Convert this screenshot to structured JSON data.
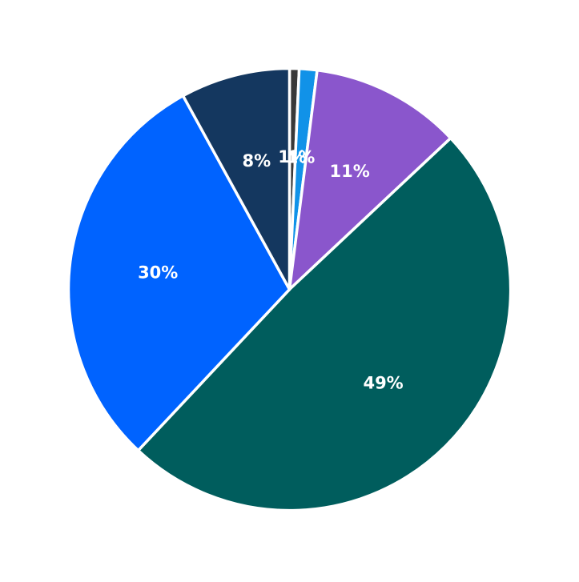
{
  "chart_data": {
    "type": "pie",
    "start_angle": "top",
    "direction": "clockwise",
    "slices": [
      {
        "value": 0.7,
        "label": "1%",
        "color": "#393939"
      },
      {
        "value": 1.3,
        "label": "1%",
        "color": "#1192e8"
      },
      {
        "value": 11.0,
        "label": "11%",
        "color": "#8a56cc"
      },
      {
        "value": 49.0,
        "label": "49%",
        "color": "#005d5d"
      },
      {
        "value": 30.0,
        "label": "30%",
        "color": "#0063ff"
      },
      {
        "value": 8.0,
        "label": "8%",
        "color": "#14375f"
      }
    ],
    "separator_color": "#ffffff",
    "label_color": "#ffffff"
  }
}
